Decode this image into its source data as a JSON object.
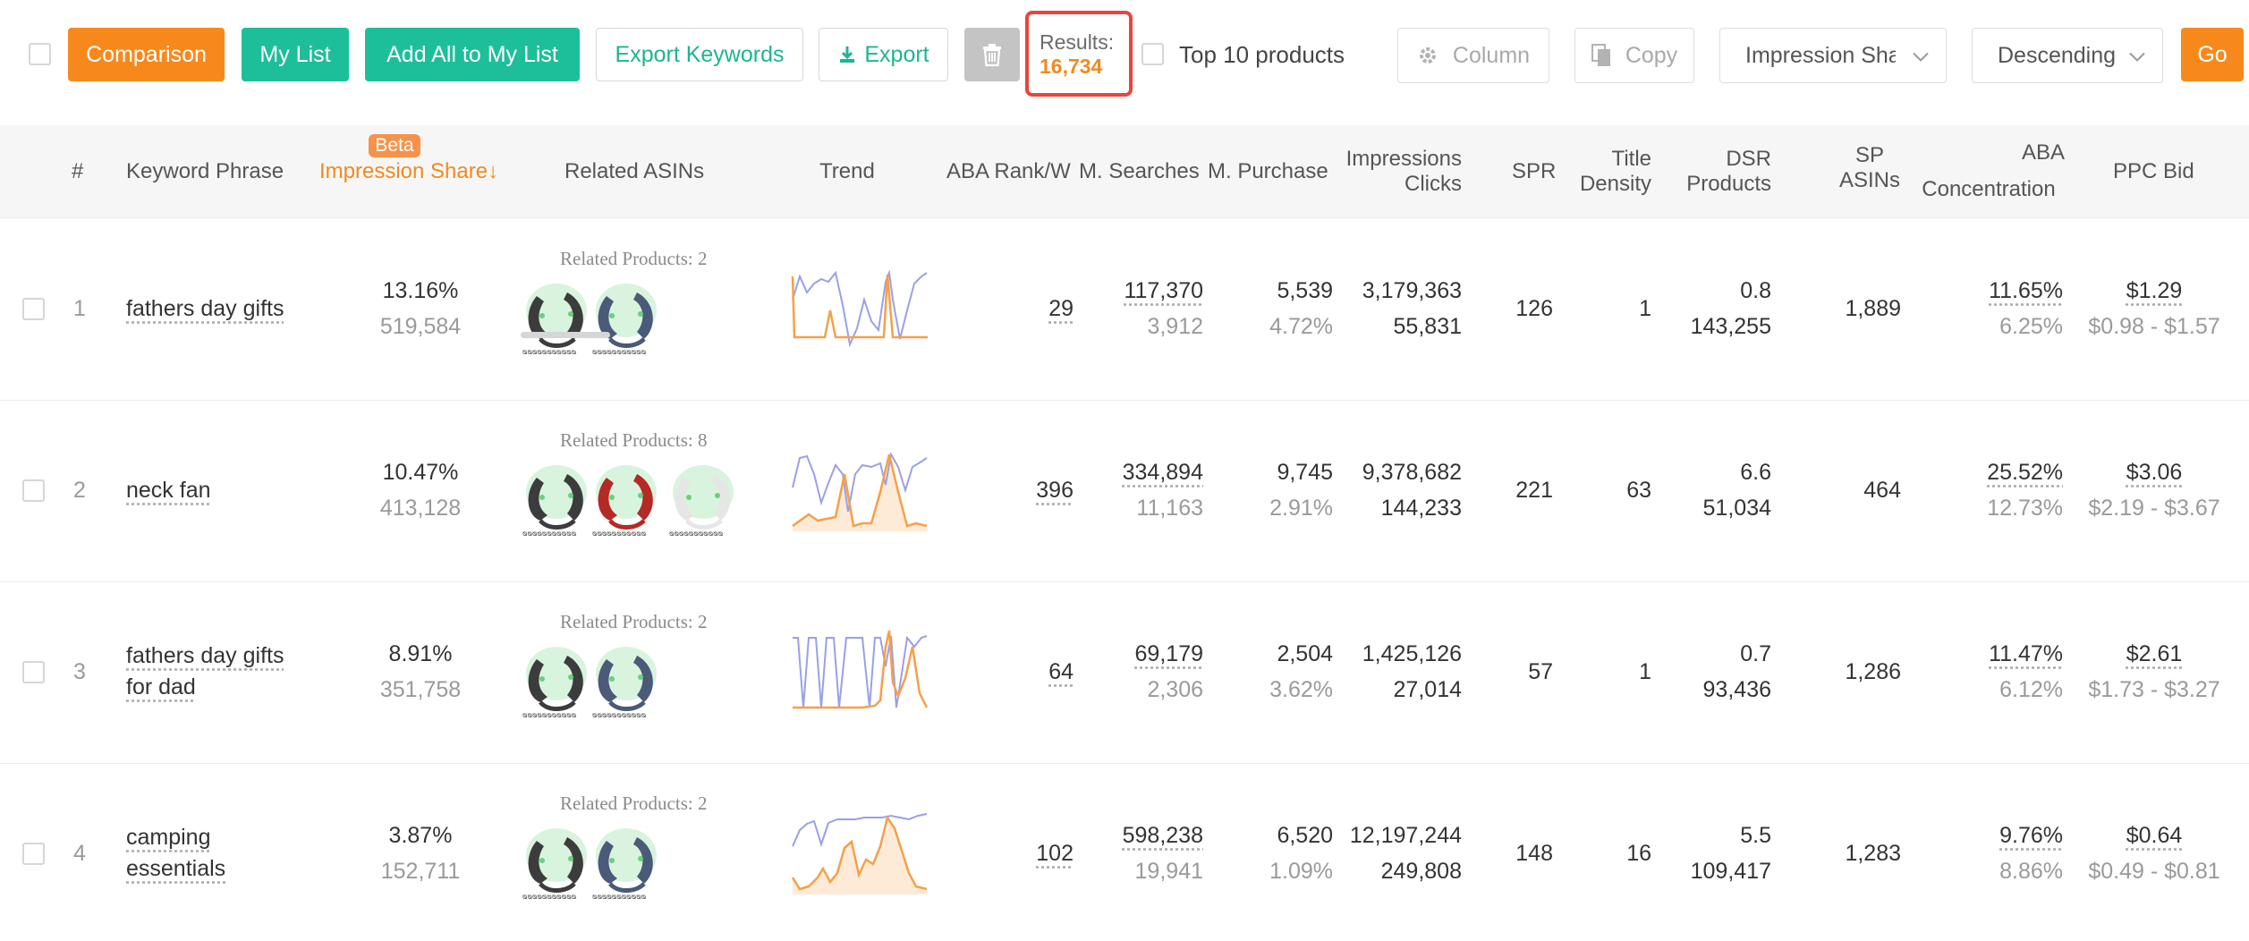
{
  "toolbar": {
    "comparison": "Comparison",
    "my_list": "My List",
    "add_all": "Add All to My List",
    "export_keywords": "Export Keywords",
    "export": "Export",
    "results_label": "Results:",
    "results_value": "16,734",
    "top10": "Top 10 products",
    "column": "Column",
    "copy": "Copy",
    "sort_field": "Impression Share",
    "sort_order": "Descending",
    "go": "Go"
  },
  "columns": {
    "index": "#",
    "keyword": "Keyword Phrase",
    "impression_share": "Impression Share↓",
    "beta": "Beta",
    "related_asins": "Related ASINs",
    "trend": "Trend",
    "aba_rank": "ABA Rank/W",
    "m_searches": "M. Searches",
    "m_purchase": "M. Purchase",
    "impressions": "Impressions",
    "clicks": "Clicks",
    "spr": "SPR",
    "title": "Title",
    "density": "Density",
    "dsr": "DSR",
    "products": "Products",
    "sp": "SP",
    "asins": "ASINs",
    "aba": "ABA",
    "concentration": "Concentration",
    "ppc_bid": "PPC Bid"
  },
  "colors": {
    "orange": "#f7891c",
    "green": "#1dbf9a",
    "results_border": "#e8453c",
    "trend_blue": "#9aa0e6",
    "trend_orange": "#f5a04a"
  },
  "rows": [
    {
      "index": "1",
      "keyword_line1": "fathers day gifts",
      "keyword_line2": "",
      "impression_share": "13.16%",
      "impressions_est": "519,584",
      "related": "Related Products: 2",
      "aba_rank": "29",
      "m_searches": "117,370",
      "m_searches_sub": "3,912",
      "m_purchase": "5,539",
      "m_purchase_pct": "4.72%",
      "impressions": "3,179,363",
      "clicks": "55,831",
      "spr": "126",
      "title_density": "1",
      "dsr": "0.8",
      "dsr_products": "143,255",
      "sp_asins": "1,889",
      "aba_conc": "11.65%",
      "aba_conc_sub": "6.25%",
      "ppc_bid": "$1.29",
      "ppc_range": "$0.98 - $1.57"
    },
    {
      "index": "2",
      "keyword_line1": "neck fan",
      "keyword_line2": "",
      "impression_share": "10.47%",
      "impressions_est": "413,128",
      "related": "Related Products: 8",
      "aba_rank": "396",
      "m_searches": "334,894",
      "m_searches_sub": "11,163",
      "m_purchase": "9,745",
      "m_purchase_pct": "2.91%",
      "impressions": "9,378,682",
      "clicks": "144,233",
      "spr": "221",
      "title_density": "63",
      "dsr": "6.6",
      "dsr_products": "51,034",
      "sp_asins": "464",
      "aba_conc": "25.52%",
      "aba_conc_sub": "12.73%",
      "ppc_bid": "$3.06",
      "ppc_range": "$2.19 - $3.67"
    },
    {
      "index": "3",
      "keyword_line1": "fathers day gifts",
      "keyword_line2": "for dad",
      "impression_share": "8.91%",
      "impressions_est": "351,758",
      "related": "Related Products: 2",
      "aba_rank": "64",
      "m_searches": "69,179",
      "m_searches_sub": "2,306",
      "m_purchase": "2,504",
      "m_purchase_pct": "3.62%",
      "impressions": "1,425,126",
      "clicks": "27,014",
      "spr": "57",
      "title_density": "1",
      "dsr": "0.7",
      "dsr_products": "93,436",
      "sp_asins": "1,286",
      "aba_conc": "11.47%",
      "aba_conc_sub": "6.12%",
      "ppc_bid": "$2.61",
      "ppc_range": "$1.73 - $3.27"
    },
    {
      "index": "4",
      "keyword_line1": "camping",
      "keyword_line2": "essentials",
      "impression_share": "3.87%",
      "impressions_est": "152,711",
      "related": "Related Products: 2",
      "aba_rank": "102",
      "m_searches": "598,238",
      "m_searches_sub": "19,941",
      "m_purchase": "6,520",
      "m_purchase_pct": "1.09%",
      "impressions": "12,197,244",
      "clicks": "249,808",
      "spr": "148",
      "title_density": "16",
      "dsr": "5.5",
      "dsr_products": "109,417",
      "sp_asins": "1,283",
      "aba_conc": "9.76%",
      "aba_conc_sub": "8.86%",
      "ppc_bid": "$0.64",
      "ppc_range": "$0.49 - $0.81"
    }
  ]
}
